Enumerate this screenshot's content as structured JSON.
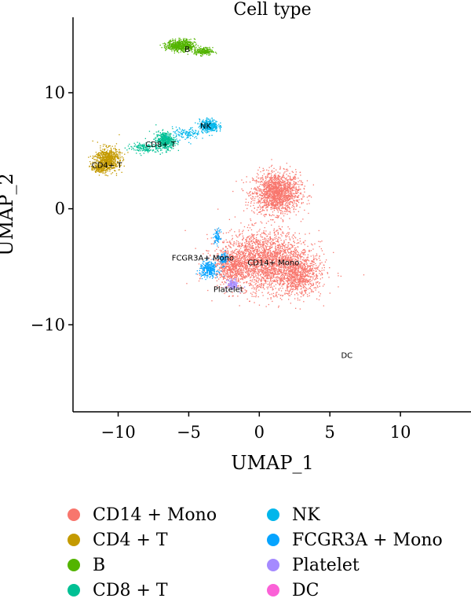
{
  "chart_data": {
    "type": "scatter",
    "title": "Cell type",
    "xlabel": "UMAP_1",
    "ylabel": "UMAP_2",
    "xlim": [
      -13.2,
      15.0
    ],
    "ylim": [
      -17.5,
      16.5
    ],
    "xticks": [
      -10,
      -5,
      0,
      5,
      10
    ],
    "yticks": [
      -10,
      0,
      10
    ],
    "xtick_labels": [
      "−10",
      "−5",
      "0",
      "5",
      "10"
    ],
    "ytick_labels": [
      "−10",
      "0",
      "10"
    ],
    "legend_position": "bottom",
    "series": [
      {
        "name": "CD14 + Mono",
        "color": "#F8766D",
        "label": "CD14+ Mono",
        "center": [
          1.2,
          -4.5
        ],
        "label_pos": [
          1.0,
          -4.6
        ],
        "blobs": [
          [
            1.2,
            1.4,
            1.5,
            1.6,
            1600
          ],
          [
            0.3,
            -4.5,
            3.0,
            2.3,
            2600
          ],
          [
            2.8,
            -5.8,
            1.4,
            1.5,
            700
          ],
          [
            -2.0,
            -5.0,
            1.0,
            1.0,
            400
          ]
        ]
      },
      {
        "name": "CD4 + T",
        "color": "#C49A00",
        "label": "CD4+ T",
        "center": [
          -10.8,
          4.2
        ],
        "label_pos": [
          -10.8,
          3.8
        ],
        "blobs": [
          [
            -10.8,
            4.3,
            0.8,
            0.9,
            700
          ],
          [
            -11.4,
            3.5,
            0.5,
            0.3,
            150
          ]
        ]
      },
      {
        "name": "B",
        "color": "#53B400",
        "label": "B",
        "center": [
          -5.1,
          13.8
        ],
        "label_pos": [
          -5.1,
          13.8
        ],
        "blobs": [
          [
            -5.6,
            14.1,
            0.9,
            0.45,
            600
          ],
          [
            -4.0,
            13.6,
            0.6,
            0.3,
            200
          ]
        ]
      },
      {
        "name": "CD8 + T",
        "color": "#00C094",
        "label": "CD8+ T",
        "center": [
          -6.8,
          5.8
        ],
        "label_pos": [
          -7.0,
          5.6
        ],
        "blobs": [
          [
            -6.7,
            5.9,
            0.6,
            0.7,
            450
          ],
          [
            -8.3,
            5.3,
            1.0,
            0.4,
            150
          ]
        ]
      },
      {
        "name": "NK",
        "color": "#00B6EB",
        "label": "NK",
        "center": [
          -3.8,
          7.2
        ],
        "label_pos": [
          -3.8,
          7.2
        ],
        "blobs": [
          [
            -3.6,
            7.2,
            0.6,
            0.5,
            350
          ],
          [
            -5.2,
            6.5,
            0.9,
            0.5,
            120
          ]
        ]
      },
      {
        "name": "FCGR3A + Mono",
        "color": "#06A4FF",
        "label": "FCGR3A+ Mono",
        "center": [
          -3.4,
          -4.0
        ],
        "label_pos": [
          -4.0,
          -4.2
        ],
        "blobs": [
          [
            -3.6,
            -5.2,
            0.6,
            0.6,
            280
          ],
          [
            -3.0,
            -2.4,
            0.2,
            0.6,
            70
          ],
          [
            -2.6,
            -4.3,
            0.3,
            0.5,
            90
          ]
        ]
      },
      {
        "name": "Platelet",
        "color": "#A58AFF",
        "label": "Platelet",
        "center": [
          -2.0,
          -6.7
        ],
        "label_pos": [
          -2.2,
          -6.9
        ],
        "blobs": [
          [
            -1.9,
            -6.5,
            0.35,
            0.4,
            130
          ]
        ]
      },
      {
        "name": "DC",
        "color": "#FB61D7",
        "label": "DC",
        "center": [
          6.2,
          -12.3
        ],
        "label_pos": [
          6.2,
          -12.6
        ],
        "blobs": []
      }
    ]
  }
}
